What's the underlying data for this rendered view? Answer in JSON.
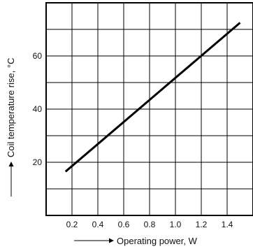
{
  "chart_data": {
    "type": "line",
    "xlabel": "Operating power, W",
    "ylabel": "Coil temperature rise, °C",
    "x_ticks": [
      0.2,
      0.4,
      0.6,
      0.8,
      1.0,
      1.2,
      1.4
    ],
    "x_tick_labels": [
      "0.2",
      "0.4",
      "0.6",
      "0.8",
      "1.0",
      "1.2",
      "1.4"
    ],
    "y_ticks": [
      20,
      40,
      60
    ],
    "y_tick_labels": [
      "20",
      "40",
      "60"
    ],
    "xlim": [
      0.0,
      1.6
    ],
    "ylim": [
      0,
      80
    ],
    "grid": true,
    "x_grid_step": 0.2,
    "y_grid_step": 10,
    "series": [
      {
        "x": [
          0.15,
          1.5
        ],
        "y": [
          16.5,
          72.5
        ]
      }
    ],
    "colors": {
      "line": "#000000",
      "grid": "#000000",
      "text": "#111111"
    }
  }
}
